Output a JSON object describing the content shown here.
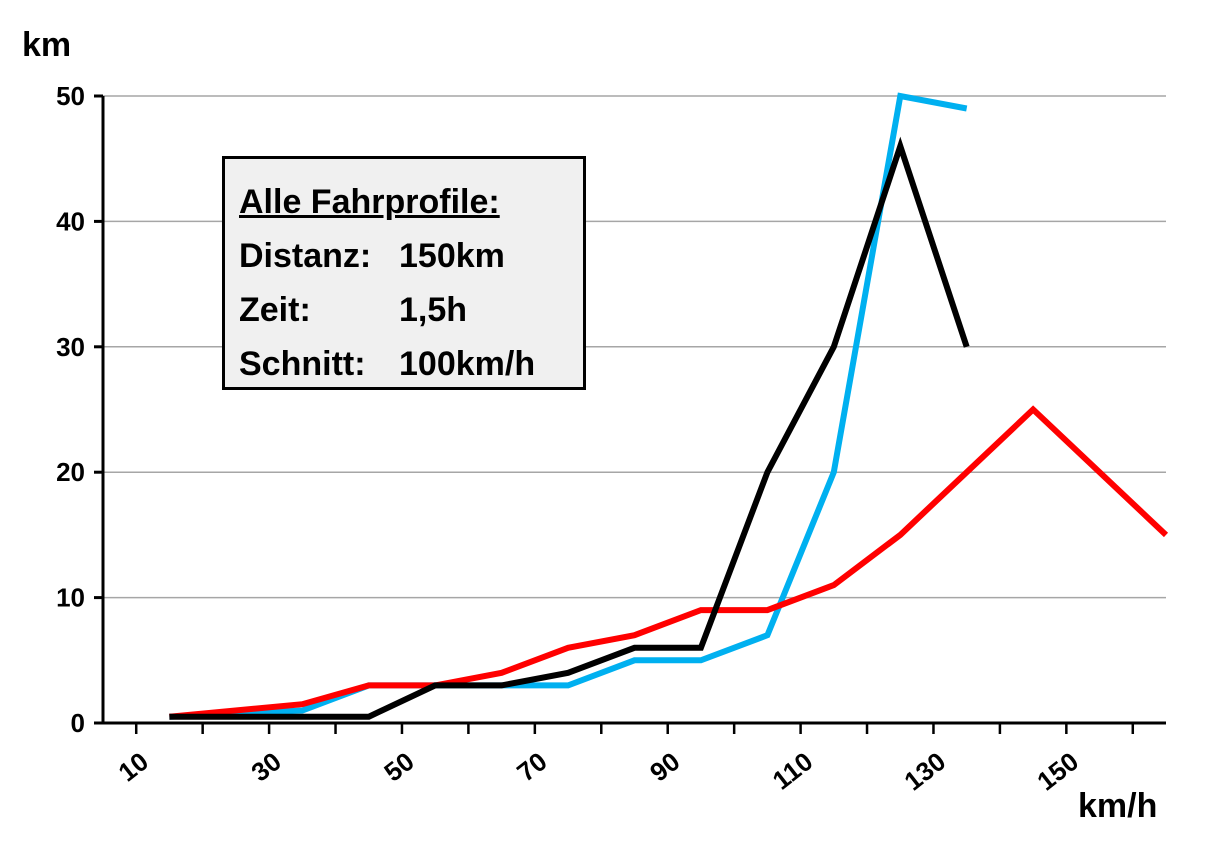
{
  "chart_data": {
    "type": "line",
    "ylabel": "km",
    "xlabel": "km/h",
    "ylim": [
      0,
      50
    ],
    "xlim": [
      5,
      165
    ],
    "y_ticks": [
      0,
      10,
      20,
      30,
      40,
      50
    ],
    "x_tick_labels": [
      "10",
      "30",
      "50",
      "70",
      "90",
      "110",
      "130",
      "150"
    ],
    "x_tick_label_values": [
      10,
      30,
      50,
      70,
      90,
      110,
      130,
      150
    ],
    "x_minor_ticks": [
      10,
      20,
      30,
      40,
      50,
      60,
      70,
      80,
      90,
      100,
      110,
      120,
      130,
      140,
      150,
      160
    ],
    "grid": "horizontal",
    "series": [
      {
        "color": "#00b0f0",
        "points": [
          [
            15,
            0.5
          ],
          [
            35,
            1
          ],
          [
            45,
            3
          ],
          [
            55,
            3
          ],
          [
            65,
            3
          ],
          [
            75,
            3
          ],
          [
            85,
            5
          ],
          [
            95,
            5
          ],
          [
            105,
            7
          ],
          [
            115,
            20
          ],
          [
            125,
            50
          ],
          [
            135,
            49
          ]
        ]
      },
      {
        "color": "#ff0000",
        "points": [
          [
            15,
            0.5
          ],
          [
            35,
            1.5
          ],
          [
            45,
            3
          ],
          [
            55,
            3
          ],
          [
            65,
            4
          ],
          [
            75,
            6
          ],
          [
            85,
            7
          ],
          [
            95,
            9
          ],
          [
            105,
            9
          ],
          [
            115,
            11
          ],
          [
            125,
            15
          ],
          [
            145,
            25
          ],
          [
            165,
            15
          ]
        ]
      },
      {
        "color": "#000000",
        "points": [
          [
            15,
            0.5
          ],
          [
            45,
            0.5
          ],
          [
            55,
            3
          ],
          [
            65,
            3
          ],
          [
            75,
            4
          ],
          [
            85,
            6
          ],
          [
            95,
            6
          ],
          [
            105,
            20
          ],
          [
            115,
            30
          ],
          [
            125,
            46
          ],
          [
            135,
            30
          ]
        ]
      }
    ]
  },
  "info_box": {
    "title": "Alle Fahrprofile:",
    "rows": [
      {
        "key": "Distanz:",
        "value": "150km"
      },
      {
        "key": "Zeit:",
        "value": "1,5h"
      },
      {
        "key": "Schnitt:",
        "value": "100km/h"
      }
    ]
  }
}
